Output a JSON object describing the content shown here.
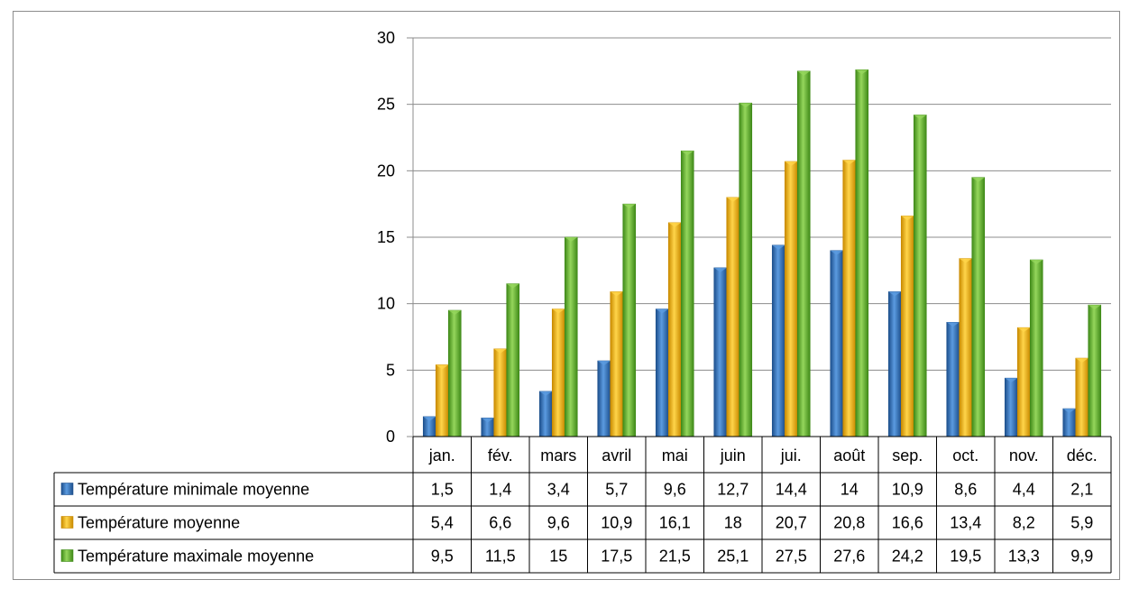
{
  "chart_data": {
    "type": "bar",
    "categories": [
      "jan.",
      "fév.",
      "mars",
      "avril",
      "mai",
      "juin",
      "jui.",
      "août",
      "sep.",
      "oct.",
      "nov.",
      "déc."
    ],
    "series": [
      {
        "name": "Température minimale moyenne",
        "color": "#2e6db4",
        "values": [
          1.5,
          1.4,
          3.4,
          5.7,
          9.6,
          12.7,
          14.4,
          14,
          10.9,
          8.6,
          4.4,
          2.1
        ],
        "labels": [
          "1,5",
          "1,4",
          "3,4",
          "5,7",
          "9,6",
          "12,7",
          "14,4",
          "14",
          "10,9",
          "8,6",
          "4,4",
          "2,1"
        ]
      },
      {
        "name": "Température moyenne",
        "color": "#f2b705",
        "values": [
          5.4,
          6.6,
          9.6,
          10.9,
          16.1,
          18,
          20.7,
          20.8,
          16.6,
          13.4,
          8.2,
          5.9
        ],
        "labels": [
          "5,4",
          "6,6",
          "9,6",
          "10,9",
          "16,1",
          "18",
          "20,7",
          "20,8",
          "16,6",
          "13,4",
          "8,2",
          "5,9"
        ]
      },
      {
        "name": "Température maximale moyenne",
        "color": "#6ab82e",
        "values": [
          9.5,
          11.5,
          15,
          17.5,
          21.5,
          25.1,
          27.5,
          27.6,
          24.2,
          19.5,
          13.3,
          9.9
        ],
        "labels": [
          "9,5",
          "11,5",
          "15",
          "17,5",
          "21,5",
          "25,1",
          "27,5",
          "27,6",
          "24,2",
          "19,5",
          "13,3",
          "9,9"
        ]
      }
    ],
    "ylim": [
      0,
      30
    ],
    "yticks": [
      0,
      5,
      10,
      15,
      20,
      25,
      30
    ],
    "grid": true,
    "data_table": true,
    "title": "",
    "xlabel": "",
    "ylabel": ""
  }
}
